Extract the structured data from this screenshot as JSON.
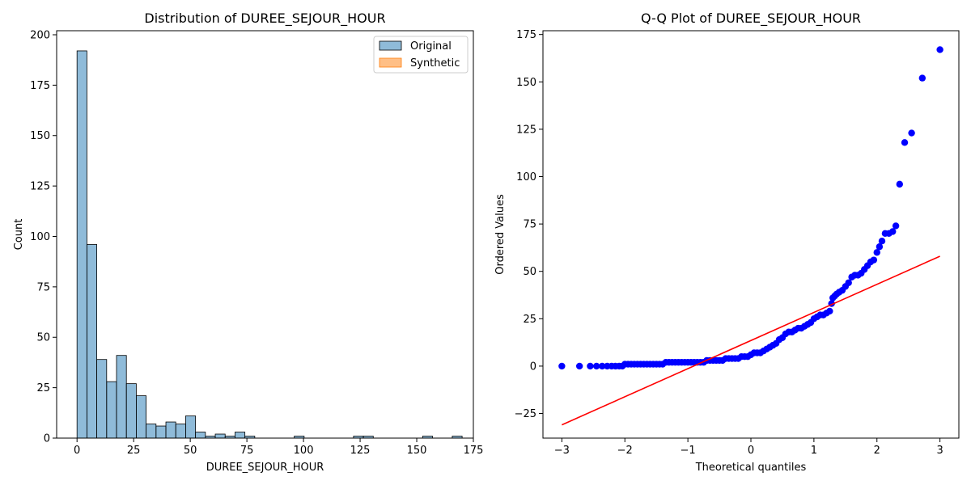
{
  "chart_data": [
    {
      "type": "bar",
      "title": "Distribution of DUREE_SEJOUR_HOUR",
      "xlabel": "DUREE_SEJOUR_HOUR",
      "ylabel": "Count",
      "xlim": [
        -9,
        175
      ],
      "ylim": [
        0,
        202
      ],
      "x_ticks": [
        0,
        25,
        50,
        75,
        100,
        125,
        150,
        175
      ],
      "y_ticks": [
        0,
        25,
        50,
        75,
        100,
        125,
        150,
        175,
        200
      ],
      "bin_width": 4.36,
      "bin_start": 0,
      "counts": [
        192,
        96,
        39,
        28,
        41,
        27,
        21,
        7,
        6,
        8,
        7,
        11,
        3,
        1,
        2,
        1,
        3,
        1,
        0,
        0,
        0,
        0,
        1,
        0,
        0,
        0,
        0,
        0,
        1,
        1,
        0,
        0,
        0,
        0,
        0,
        1,
        0,
        0,
        1
      ],
      "series": [
        {
          "name": "Original",
          "color": "#1f77b4"
        },
        {
          "name": "Synthetic",
          "color": "#ff7f0e"
        }
      ],
      "legend_position": "top-right",
      "grid": false
    },
    {
      "type": "scatter",
      "title": "Q-Q Plot of DUREE_SEJOUR_HOUR",
      "xlabel": "Theoretical quantiles",
      "ylabel": "Ordered Values",
      "xlim": [
        -3.3,
        3.3
      ],
      "ylim": [
        -38,
        177
      ],
      "x_ticks": [
        -3,
        -2,
        -1,
        0,
        1,
        2,
        3
      ],
      "y_ticks": [
        -25,
        0,
        25,
        50,
        75,
        100,
        125,
        150,
        175
      ],
      "points": [
        [
          -3.0,
          0
        ],
        [
          -2.72,
          0
        ],
        [
          -2.55,
          0
        ],
        [
          -2.45,
          0
        ],
        [
          -2.36,
          0
        ],
        [
          -2.28,
          0
        ],
        [
          -2.21,
          0
        ],
        [
          -2.15,
          0
        ],
        [
          -2.09,
          0
        ],
        [
          -2.04,
          0
        ],
        [
          -2.0,
          1
        ],
        [
          -1.95,
          1
        ],
        [
          -1.9,
          1
        ],
        [
          -1.85,
          1
        ],
        [
          -1.8,
          1
        ],
        [
          -1.75,
          1
        ],
        [
          -1.7,
          1
        ],
        [
          -1.65,
          1
        ],
        [
          -1.6,
          1
        ],
        [
          -1.55,
          1
        ],
        [
          -1.5,
          1
        ],
        [
          -1.45,
          1
        ],
        [
          -1.4,
          1
        ],
        [
          -1.35,
          2
        ],
        [
          -1.3,
          2
        ],
        [
          -1.25,
          2
        ],
        [
          -1.2,
          2
        ],
        [
          -1.15,
          2
        ],
        [
          -1.1,
          2
        ],
        [
          -1.05,
          2
        ],
        [
          -1.0,
          2
        ],
        [
          -0.95,
          2
        ],
        [
          -0.9,
          2
        ],
        [
          -0.85,
          2
        ],
        [
          -0.8,
          2
        ],
        [
          -0.75,
          2
        ],
        [
          -0.7,
          3
        ],
        [
          -0.65,
          3
        ],
        [
          -0.6,
          3
        ],
        [
          -0.55,
          3
        ],
        [
          -0.5,
          3
        ],
        [
          -0.45,
          3
        ],
        [
          -0.4,
          4
        ],
        [
          -0.35,
          4
        ],
        [
          -0.3,
          4
        ],
        [
          -0.25,
          4
        ],
        [
          -0.2,
          4
        ],
        [
          -0.15,
          5
        ],
        [
          -0.1,
          5
        ],
        [
          -0.05,
          5
        ],
        [
          0.0,
          6
        ],
        [
          0.05,
          7
        ],
        [
          0.1,
          7
        ],
        [
          0.15,
          7
        ],
        [
          0.2,
          8
        ],
        [
          0.25,
          9
        ],
        [
          0.3,
          10
        ],
        [
          0.35,
          11
        ],
        [
          0.4,
          12
        ],
        [
          0.45,
          14
        ],
        [
          0.5,
          15
        ],
        [
          0.55,
          17
        ],
        [
          0.6,
          18
        ],
        [
          0.65,
          18
        ],
        [
          0.7,
          19
        ],
        [
          0.75,
          20
        ],
        [
          0.8,
          20
        ],
        [
          0.85,
          21
        ],
        [
          0.9,
          22
        ],
        [
          0.95,
          23
        ],
        [
          1.0,
          25
        ],
        [
          1.05,
          26
        ],
        [
          1.1,
          27
        ],
        [
          1.15,
          27
        ],
        [
          1.2,
          28
        ],
        [
          1.25,
          29
        ],
        [
          1.28,
          33
        ],
        [
          1.3,
          36
        ],
        [
          1.33,
          37
        ],
        [
          1.36,
          38
        ],
        [
          1.4,
          39
        ],
        [
          1.45,
          40
        ],
        [
          1.5,
          42
        ],
        [
          1.55,
          44
        ],
        [
          1.6,
          47
        ],
        [
          1.65,
          48
        ],
        [
          1.7,
          48
        ],
        [
          1.75,
          49
        ],
        [
          1.8,
          51
        ],
        [
          1.85,
          53
        ],
        [
          1.9,
          55
        ],
        [
          1.95,
          56
        ],
        [
          2.0,
          60
        ],
        [
          2.04,
          63
        ],
        [
          2.08,
          66
        ],
        [
          2.13,
          70
        ],
        [
          2.19,
          70
        ],
        [
          2.25,
          71
        ],
        [
          2.3,
          74
        ],
        [
          2.36,
          96
        ],
        [
          2.44,
          118
        ],
        [
          2.55,
          123
        ],
        [
          2.72,
          152
        ],
        [
          3.0,
          167
        ]
      ],
      "fit_line": {
        "color": "#ff0000",
        "x": [
          -3.0,
          3.0
        ],
        "y": [
          -31,
          58
        ]
      },
      "point_color": "#0000ff",
      "grid": false
    }
  ]
}
